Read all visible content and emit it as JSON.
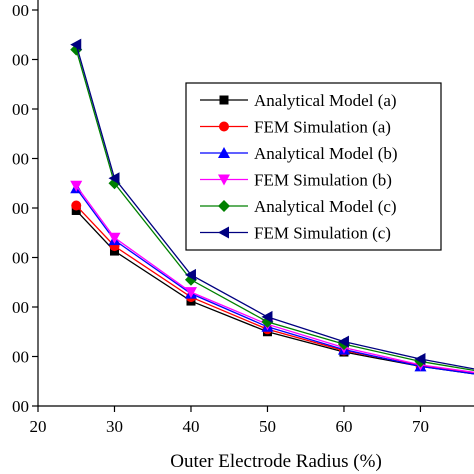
{
  "chart_data": {
    "type": "line",
    "xlabel": "Outer Electrode Radius (%)",
    "ylabel": "",
    "xlim": [
      20,
      77
    ],
    "ylim": [
      0,
      8
    ],
    "x_ticks": [
      20,
      30,
      40,
      50,
      60,
      70
    ],
    "x_tick_labels": [
      "20",
      "30",
      "40",
      "50",
      "60",
      "70"
    ],
    "y_ticks": [
      0,
      1,
      2,
      3,
      4,
      5,
      6,
      7,
      8
    ],
    "y_tick_labels": [
      "00",
      "00",
      "00",
      "00",
      "00",
      "00",
      "00",
      "00",
      "00"
    ],
    "grid": false,
    "legend_position": "top-right",
    "series": [
      {
        "name": "Analytical Model (a)",
        "color": "#000000",
        "marker": "square",
        "x": [
          25,
          30,
          40,
          50,
          60,
          70,
          77
        ],
        "y": [
          3.95,
          3.13,
          2.12,
          1.5,
          1.09,
          0.8,
          0.65
        ]
      },
      {
        "name": "FEM Simulation (a)",
        "color": "#ff0000",
        "marker": "circle",
        "x": [
          25,
          30,
          40,
          50,
          60,
          70,
          77
        ],
        "y": [
          4.05,
          3.23,
          2.2,
          1.55,
          1.12,
          0.82,
          0.67
        ]
      },
      {
        "name": "Analytical Model (b)",
        "color": "#0000ff",
        "marker": "triangle-up",
        "x": [
          25,
          30,
          40,
          50,
          60,
          70,
          77
        ],
        "y": [
          4.4,
          3.35,
          2.27,
          1.6,
          1.14,
          0.8,
          0.65
        ]
      },
      {
        "name": "FEM Simulation (b)",
        "color": "#ff00ff",
        "marker": "triangle-down",
        "x": [
          25,
          30,
          40,
          50,
          60,
          70,
          77
        ],
        "y": [
          4.45,
          3.4,
          2.3,
          1.65,
          1.18,
          0.83,
          0.68
        ]
      },
      {
        "name": "Analytical Model (c)",
        "color": "#008000",
        "marker": "diamond",
        "x": [
          25,
          30,
          40,
          50,
          60,
          70,
          77
        ],
        "y": [
          7.2,
          4.5,
          2.55,
          1.7,
          1.25,
          0.9,
          0.72
        ]
      },
      {
        "name": "FEM Simulation (c)",
        "color": "#000080",
        "marker": "triangle-left",
        "x": [
          25,
          30,
          40,
          50,
          60,
          70,
          77
        ],
        "y": [
          7.3,
          4.6,
          2.65,
          1.8,
          1.3,
          0.95,
          0.75
        ]
      }
    ]
  }
}
